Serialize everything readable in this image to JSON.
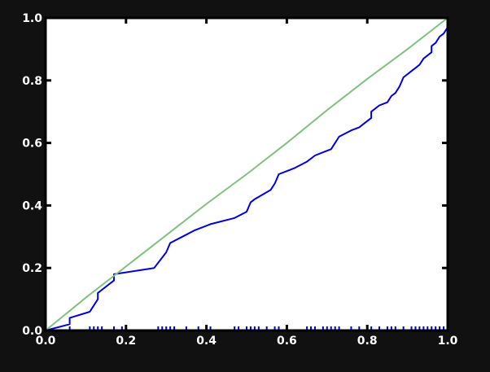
{
  "chart_data": {
    "type": "line",
    "title": "",
    "xlabel": "",
    "ylabel": "",
    "xlim": [
      0,
      1
    ],
    "ylim": [
      0,
      1
    ],
    "grid": false,
    "legend": "none",
    "x_ticks": [
      "0.0",
      "0.2",
      "0.4",
      "0.6",
      "0.8",
      "1.0"
    ],
    "y_ticks": [
      "0.0",
      "0.2",
      "0.4",
      "0.6",
      "0.8",
      "1.0"
    ],
    "colors": {
      "background": "#111111",
      "plot_background": "#ffffff",
      "axes": "#000000",
      "tick_label": "#ffffff",
      "series_empirical": "#0000dd",
      "series_reference": "#80c080",
      "rug": "#0000dd"
    },
    "series": [
      {
        "color_key": "series_empirical",
        "x": [
          0.0,
          0.06,
          0.06,
          0.11,
          0.13,
          0.13,
          0.17,
          0.17,
          0.27,
          0.3,
          0.31,
          0.34,
          0.37,
          0.41,
          0.47,
          0.5,
          0.51,
          0.52,
          0.56,
          0.57,
          0.58,
          0.6,
          0.62,
          0.65,
          0.67,
          0.69,
          0.71,
          0.72,
          0.73,
          0.76,
          0.78,
          0.8,
          0.81,
          0.81,
          0.83,
          0.85,
          0.86,
          0.87,
          0.88,
          0.89,
          0.91,
          0.92,
          0.93,
          0.94,
          0.95,
          0.96,
          0.96,
          0.97,
          0.98,
          0.99,
          1.0
        ],
        "y": [
          0.0,
          0.02,
          0.04,
          0.06,
          0.1,
          0.12,
          0.16,
          0.18,
          0.2,
          0.25,
          0.28,
          0.3,
          0.32,
          0.34,
          0.36,
          0.38,
          0.41,
          0.42,
          0.45,
          0.47,
          0.5,
          0.51,
          0.52,
          0.54,
          0.56,
          0.57,
          0.58,
          0.6,
          0.62,
          0.64,
          0.65,
          0.67,
          0.68,
          0.7,
          0.72,
          0.73,
          0.75,
          0.76,
          0.78,
          0.81,
          0.83,
          0.84,
          0.85,
          0.87,
          0.88,
          0.89,
          0.91,
          0.92,
          0.94,
          0.95,
          0.97
        ]
      },
      {
        "color_key": "series_reference",
        "x": [
          0.0,
          0.1,
          0.2,
          0.3,
          0.4,
          0.5,
          0.6,
          0.7,
          0.8,
          0.9,
          1.0
        ],
        "y": [
          0.0,
          0.105,
          0.205,
          0.305,
          0.405,
          0.5,
          0.6,
          0.705,
          0.805,
          0.9,
          1.0
        ]
      }
    ],
    "rug": {
      "color_key": "rug",
      "x": [
        0.06,
        0.11,
        0.12,
        0.13,
        0.14,
        0.17,
        0.19,
        0.28,
        0.29,
        0.3,
        0.31,
        0.32,
        0.35,
        0.38,
        0.41,
        0.47,
        0.48,
        0.5,
        0.51,
        0.52,
        0.53,
        0.55,
        0.57,
        0.58,
        0.65,
        0.66,
        0.67,
        0.69,
        0.7,
        0.71,
        0.72,
        0.73,
        0.76,
        0.78,
        0.8,
        0.81,
        0.83,
        0.85,
        0.86,
        0.87,
        0.89,
        0.91,
        0.92,
        0.93,
        0.94,
        0.95,
        0.96,
        0.97,
        0.98,
        0.99
      ]
    }
  }
}
